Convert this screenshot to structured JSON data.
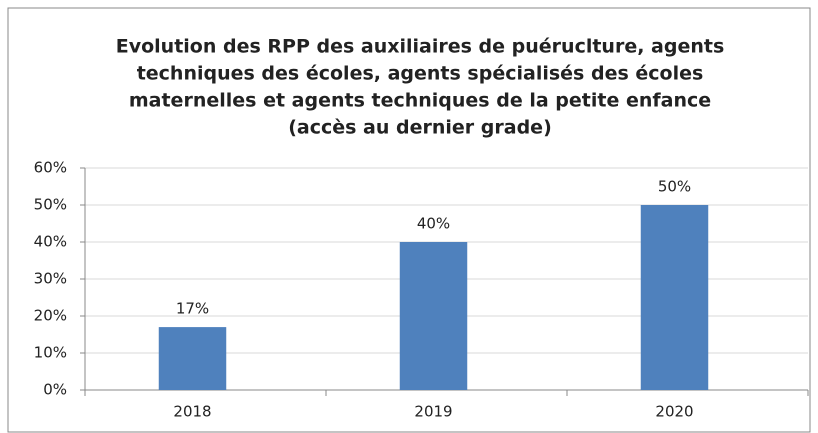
{
  "chart_data": {
    "type": "bar",
    "title": [
      "Evolution des RPP des auxiliaires de puéruclture, agents",
      "techniques des écoles, agents spécialisés des écoles",
      "maternelles et agents techniques de la petite enfance",
      "(accès au dernier grade)"
    ],
    "categories": [
      "2018",
      "2019",
      "2020"
    ],
    "values": [
      17,
      40,
      50
    ],
    "value_labels": [
      "17%",
      "40%",
      "50%"
    ],
    "color": "#4f81bd",
    "ylim": [
      0,
      60
    ],
    "yticks": [
      {
        "value": 0,
        "label": "0%"
      },
      {
        "value": 10,
        "label": "10%"
      },
      {
        "value": 20,
        "label": "20%"
      },
      {
        "value": 30,
        "label": "30%"
      },
      {
        "value": 40,
        "label": "40%"
      },
      {
        "value": 50,
        "label": "50%"
      },
      {
        "value": 60,
        "label": "60%"
      }
    ],
    "grid": true
  }
}
